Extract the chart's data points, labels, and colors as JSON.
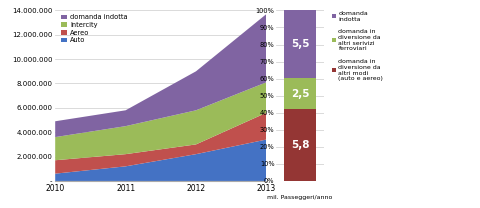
{
  "area_years": [
    2010,
    2011,
    2012,
    2013
  ],
  "auto": [
    600000,
    1200000,
    2200000,
    3400000
  ],
  "aereo": [
    1700000,
    2200000,
    3000000,
    5600000
  ],
  "intercity": [
    3600000,
    4500000,
    5800000,
    8100000
  ],
  "indotta": [
    4900000,
    5800000,
    9000000,
    13700000
  ],
  "area_colors": [
    "#4472C4",
    "#C0504D",
    "#9BBB59",
    "#8064A2"
  ],
  "area_labels": [
    "Auto",
    "Aereo",
    "Intercity",
    "domanda indotta"
  ],
  "ylim": [
    0,
    14000000
  ],
  "yticks": [
    0,
    2000000,
    4000000,
    6000000,
    8000000,
    10000000,
    12000000,
    14000000
  ],
  "ytick_labels": [
    "-",
    "2.000.000",
    "4.000.000",
    "6.000.000",
    "8.000.000",
    "10.000.000",
    "12.000.000",
    "14.000.000"
  ],
  "bar_values": [
    5.8,
    2.5,
    5.5
  ],
  "bar_colors": [
    "#943634",
    "#9BBB59",
    "#8064A2"
  ],
  "bar_labels": [
    "domanda in\ndiversione da\naltri modi\n(auto e aereo)",
    "domanda in\ndiversione da\naltri serivizi\nferroviari",
    "domanda\nindotta"
  ],
  "bar_texts": [
    "5,8",
    "2,5",
    "5,5"
  ],
  "bar_pct_ticks": [
    0,
    10,
    20,
    30,
    40,
    50,
    60,
    70,
    80,
    90,
    100
  ],
  "xlabel_bar": "mil. Passeggeri/anno",
  "bg_color": "#FFFFFF"
}
